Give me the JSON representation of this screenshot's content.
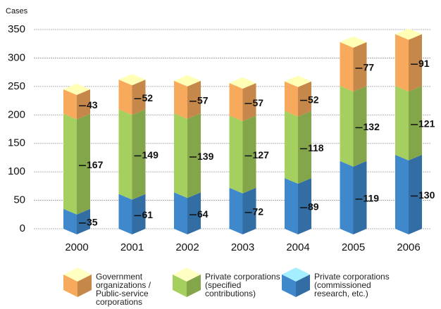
{
  "chart_data": {
    "type": "bar",
    "stacked": true,
    "y_label": "Cases",
    "categories": [
      "2000",
      "2001",
      "2002",
      "2003",
      "2004",
      "2005",
      "2006"
    ],
    "series": [
      {
        "name": "Private corporations (commissioned research, etc.)",
        "color": "#3f88cc",
        "values": [
          35,
          61,
          64,
          72,
          89,
          119,
          130
        ]
      },
      {
        "name": "Private corporations (specified contributions)",
        "color": "#a5cf5e",
        "values": [
          167,
          149,
          139,
          127,
          118,
          132,
          121
        ]
      },
      {
        "name": "Government organizations / Public-service corporations",
        "color": "#f7aa5c",
        "values": [
          43,
          52,
          57,
          57,
          52,
          77,
          91
        ]
      }
    ],
    "ylim": [
      0,
      350
    ],
    "yticks": [
      0,
      50,
      100,
      150,
      200,
      250,
      300,
      350
    ],
    "grid": true
  }
}
